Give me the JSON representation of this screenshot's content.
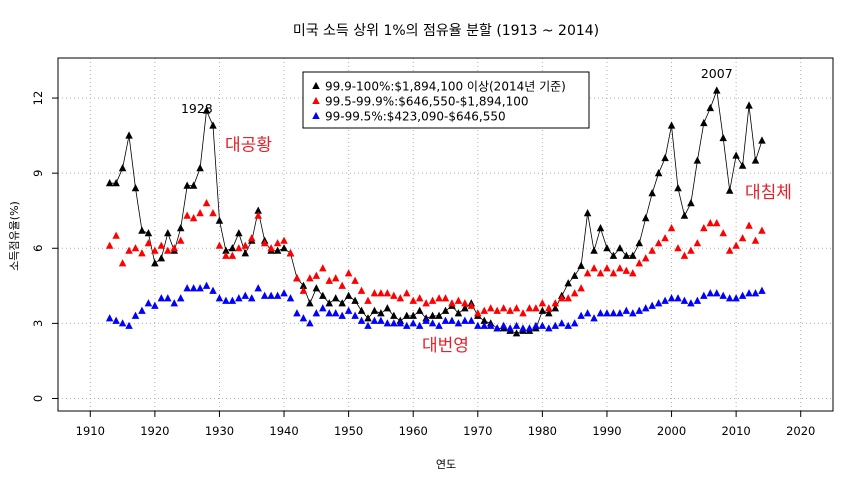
{
  "chart_data": {
    "type": "scatter",
    "title": "미국 소득 상위 1%의 점유율 분할 (1913 ~ 2014)",
    "xlabel": "연도",
    "ylabel": "소득점유율(%)",
    "xlim": [
      1905,
      2025
    ],
    "ylim": [
      -0.5,
      13.6
    ],
    "xticks": [
      1910,
      1920,
      1930,
      1940,
      1950,
      1960,
      1970,
      1980,
      1990,
      2000,
      2010,
      2020
    ],
    "yticks": [
      0,
      3,
      6,
      9,
      12
    ],
    "grid": true,
    "legend_position": "top-center",
    "series": [
      {
        "name": "99.9-100%:$1,894,100 이상(2014년 기준)",
        "color": "#000000",
        "marker": "triangle",
        "connected": true,
        "x": [
          1913,
          1914,
          1915,
          1916,
          1917,
          1918,
          1919,
          1920,
          1921,
          1922,
          1923,
          1924,
          1925,
          1926,
          1927,
          1928,
          1929,
          1930,
          1931,
          1932,
          1933,
          1934,
          1935,
          1936,
          1937,
          1938,
          1939,
          1940,
          1941,
          1942,
          1943,
          1944,
          1945,
          1946,
          1947,
          1948,
          1949,
          1950,
          1951,
          1952,
          1953,
          1954,
          1955,
          1956,
          1957,
          1958,
          1959,
          1960,
          1961,
          1962,
          1963,
          1964,
          1965,
          1966,
          1967,
          1968,
          1969,
          1970,
          1971,
          1972,
          1973,
          1974,
          1975,
          1976,
          1977,
          1978,
          1979,
          1980,
          1981,
          1982,
          1983,
          1984,
          1985,
          1986,
          1987,
          1988,
          1989,
          1990,
          1991,
          1992,
          1993,
          1994,
          1995,
          1996,
          1997,
          1998,
          1999,
          2000,
          2001,
          2002,
          2003,
          2004,
          2005,
          2006,
          2007,
          2008,
          2009,
          2010,
          2011,
          2012,
          2013,
          2014
        ],
        "y": [
          8.6,
          8.6,
          9.2,
          10.5,
          8.4,
          6.7,
          6.6,
          5.4,
          5.6,
          6.6,
          5.9,
          6.8,
          8.5,
          8.5,
          9.2,
          11.5,
          10.9,
          7.1,
          5.9,
          6.0,
          6.6,
          5.8,
          6.3,
          7.5,
          6.3,
          5.9,
          5.9,
          6.0,
          5.8,
          4.8,
          4.5,
          3.8,
          4.4,
          4.1,
          3.8,
          4.0,
          3.8,
          4.1,
          3.9,
          3.5,
          3.2,
          3.5,
          3.4,
          3.6,
          3.3,
          3.1,
          3.3,
          3.3,
          3.5,
          3.2,
          3.3,
          3.3,
          3.5,
          3.7,
          3.4,
          3.6,
          3.8,
          3.3,
          3.1,
          3.0,
          2.8,
          2.8,
          2.7,
          2.6,
          2.7,
          2.7,
          2.8,
          3.5,
          3.4,
          3.6,
          4.1,
          4.6,
          4.9,
          5.3,
          7.4,
          5.9,
          6.8,
          6.0,
          5.7,
          6.0,
          5.7,
          5.7,
          6.2,
          7.2,
          8.2,
          9.0,
          9.6,
          10.9,
          8.4,
          7.3,
          7.8,
          9.5,
          11.0,
          11.6,
          12.3,
          10.4,
          8.3,
          9.7,
          9.3,
          11.7,
          9.5,
          10.3
        ]
      },
      {
        "name": "99.5-99.9%:$646,550-$1,894,100",
        "color": "#ff0000",
        "marker": "triangle",
        "connected": false,
        "x": [
          1913,
          1914,
          1915,
          1916,
          1917,
          1918,
          1919,
          1920,
          1921,
          1922,
          1923,
          1924,
          1925,
          1926,
          1927,
          1928,
          1929,
          1930,
          1931,
          1932,
          1933,
          1934,
          1935,
          1936,
          1937,
          1938,
          1939,
          1940,
          1941,
          1942,
          1943,
          1944,
          1945,
          1946,
          1947,
          1948,
          1949,
          1950,
          1951,
          1952,
          1953,
          1954,
          1955,
          1956,
          1957,
          1958,
          1959,
          1960,
          1961,
          1962,
          1963,
          1964,
          1965,
          1966,
          1967,
          1968,
          1969,
          1970,
          1971,
          1972,
          1973,
          1974,
          1975,
          1976,
          1977,
          1978,
          1979,
          1980,
          1981,
          1982,
          1983,
          1984,
          1985,
          1986,
          1987,
          1988,
          1989,
          1990,
          1991,
          1992,
          1993,
          1994,
          1995,
          1996,
          1997,
          1998,
          1999,
          2000,
          2001,
          2002,
          2003,
          2004,
          2005,
          2006,
          2007,
          2008,
          2009,
          2010,
          2011,
          2012,
          2013,
          2014
        ],
        "y": [
          6.1,
          6.5,
          5.4,
          5.9,
          6.0,
          5.8,
          6.2,
          5.9,
          6.1,
          5.9,
          6.0,
          6.3,
          7.3,
          7.2,
          7.4,
          7.8,
          7.4,
          6.1,
          5.7,
          5.7,
          6.0,
          6.1,
          6.4,
          7.3,
          6.2,
          6.0,
          6.2,
          6.3,
          5.8,
          4.8,
          4.3,
          4.8,
          4.9,
          5.2,
          4.7,
          4.8,
          4.5,
          5.0,
          4.7,
          4.3,
          3.9,
          4.2,
          4.2,
          4.2,
          4.1,
          4.0,
          4.2,
          3.9,
          4.0,
          3.8,
          3.9,
          4.0,
          4.0,
          3.8,
          3.9,
          3.8,
          3.7,
          3.4,
          3.5,
          3.6,
          3.5,
          3.6,
          3.5,
          3.6,
          3.4,
          3.6,
          3.6,
          3.8,
          3.6,
          3.8,
          4.0,
          4.0,
          4.2,
          4.4,
          5.0,
          5.2,
          5.0,
          5.2,
          5.0,
          5.2,
          5.1,
          5.0,
          5.4,
          5.6,
          5.9,
          6.2,
          6.4,
          6.8,
          6.0,
          5.7,
          5.9,
          6.2,
          6.8,
          7.0,
          7.0,
          6.6,
          5.9,
          6.1,
          6.4,
          6.9,
          6.3,
          6.7
        ]
      },
      {
        "name": "99-99.5%:$423,090-$646,550",
        "color": "#0000ff",
        "marker": "triangle",
        "connected": false,
        "x": [
          1913,
          1914,
          1915,
          1916,
          1917,
          1918,
          1919,
          1920,
          1921,
          1922,
          1923,
          1924,
          1925,
          1926,
          1927,
          1928,
          1929,
          1930,
          1931,
          1932,
          1933,
          1934,
          1935,
          1936,
          1937,
          1938,
          1939,
          1940,
          1941,
          1942,
          1943,
          1944,
          1945,
          1946,
          1947,
          1948,
          1949,
          1950,
          1951,
          1952,
          1953,
          1954,
          1955,
          1956,
          1957,
          1958,
          1959,
          1960,
          1961,
          1962,
          1963,
          1964,
          1965,
          1966,
          1967,
          1968,
          1969,
          1970,
          1971,
          1972,
          1973,
          1974,
          1975,
          1976,
          1977,
          1978,
          1979,
          1980,
          1981,
          1982,
          1983,
          1984,
          1985,
          1986,
          1987,
          1988,
          1989,
          1990,
          1991,
          1992,
          1993,
          1994,
          1995,
          1996,
          1997,
          1998,
          1999,
          2000,
          2001,
          2002,
          2003,
          2004,
          2005,
          2006,
          2007,
          2008,
          2009,
          2010,
          2011,
          2012,
          2013,
          2014
        ],
        "y": [
          3.2,
          3.1,
          3.0,
          2.9,
          3.3,
          3.5,
          3.8,
          3.7,
          4.0,
          4.0,
          3.8,
          4.0,
          4.4,
          4.4,
          4.4,
          4.5,
          4.3,
          4.0,
          3.9,
          3.9,
          4.0,
          4.1,
          4.0,
          4.4,
          4.1,
          4.1,
          4.1,
          4.2,
          4.0,
          3.4,
          3.2,
          3.0,
          3.4,
          3.6,
          3.4,
          3.4,
          3.3,
          3.5,
          3.3,
          3.1,
          2.9,
          3.1,
          3.1,
          3.0,
          3.0,
          3.0,
          2.9,
          3.0,
          2.9,
          3.1,
          3.0,
          2.9,
          3.1,
          3.1,
          3.0,
          3.1,
          3.1,
          2.9,
          2.9,
          2.9,
          2.8,
          2.9,
          2.8,
          2.9,
          2.8,
          2.8,
          2.9,
          2.9,
          2.8,
          2.9,
          3.0,
          2.9,
          3.0,
          3.3,
          3.4,
          3.2,
          3.4,
          3.4,
          3.4,
          3.4,
          3.5,
          3.4,
          3.5,
          3.6,
          3.7,
          3.8,
          3.9,
          4.0,
          4.0,
          3.9,
          3.8,
          3.9,
          4.1,
          4.2,
          4.2,
          4.1,
          4.0,
          4.0,
          4.1,
          4.2,
          4.2,
          4.3
        ]
      }
    ],
    "annotations": [
      {
        "text": "1928",
        "x": 1926.5,
        "y": 11.4,
        "color": "#000000"
      },
      {
        "text": "2007",
        "x": 2007.0,
        "y": 12.8,
        "color": "#000000"
      },
      {
        "text": "대공황",
        "x": 1934.5,
        "y": 9.9,
        "color": "#e8202a"
      },
      {
        "text": "대번영",
        "x": 1965.0,
        "y": 1.9,
        "color": "#e8202a"
      },
      {
        "text": "대침체",
        "x": 2015.0,
        "y": 8.0,
        "color": "#e8202a"
      }
    ]
  }
}
